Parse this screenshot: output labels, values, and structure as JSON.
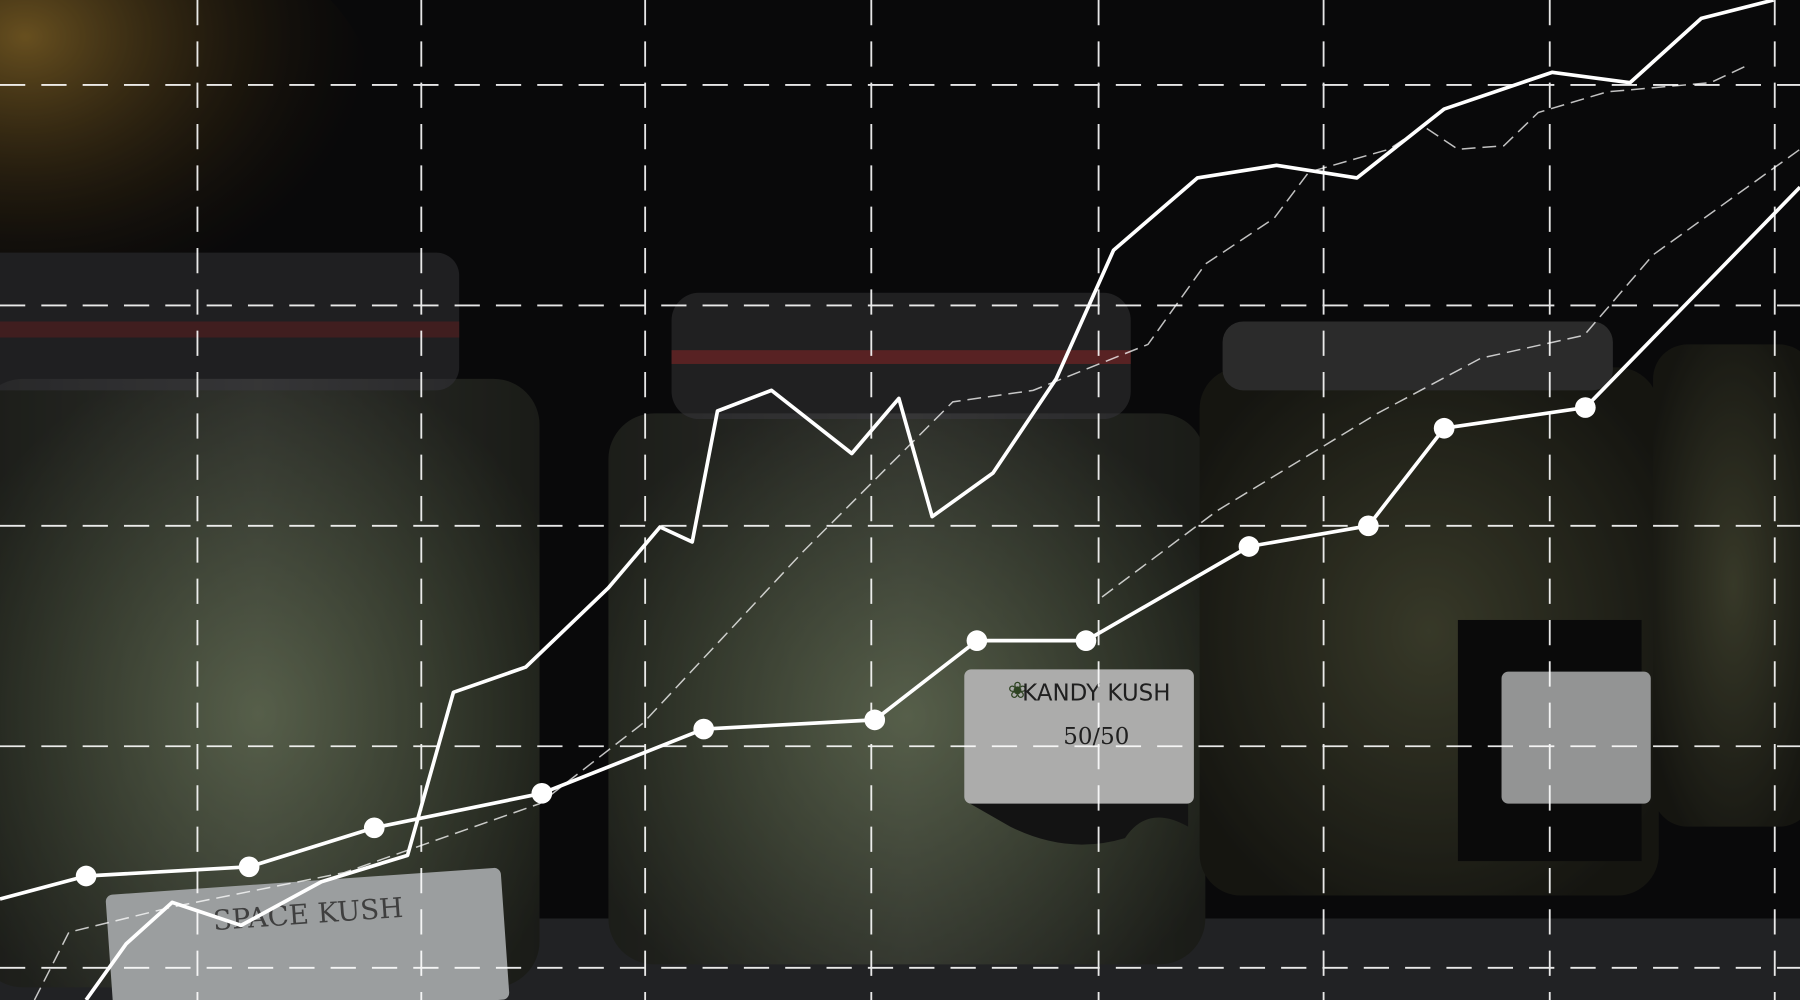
{
  "labels": {
    "jar_center": "KANDY KUSH",
    "jar_center_ratio": "50/50",
    "jar_left": "SPACE KUSH"
  }
}
